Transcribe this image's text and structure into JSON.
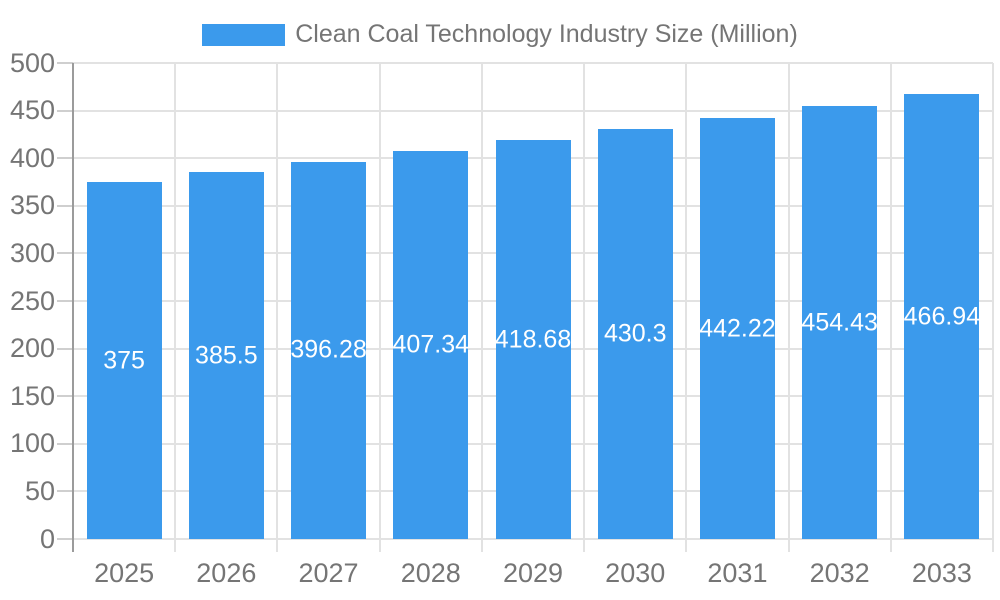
{
  "chart_data": {
    "type": "bar",
    "title": "Clean Coal Technology Industry Size (Million)",
    "legend": {
      "position": "top",
      "entries": [
        "Clean Coal Technology Industry Size (Million)"
      ]
    },
    "categories": [
      "2025",
      "2026",
      "2027",
      "2028",
      "2029",
      "2030",
      "2031",
      "2032",
      "2033"
    ],
    "series": [
      {
        "name": "Clean Coal Technology Industry Size (Million)",
        "values": [
          375,
          385.5,
          396.28,
          407.34,
          418.68,
          430.3,
          442.22,
          454.43,
          466.94
        ]
      }
    ],
    "value_labels": [
      "375",
      "385.5",
      "396.28",
      "407.34",
      "418.68",
      "430.3",
      "442.22",
      "454.43",
      "466.94"
    ],
    "xlabel": "",
    "ylabel": "",
    "ylim": [
      0,
      500
    ],
    "yticks": [
      0,
      50,
      100,
      150,
      200,
      250,
      300,
      350,
      400,
      450,
      500
    ],
    "grid": true,
    "colors": {
      "bar": "#3B9AEC",
      "value_label": "#FFFFFF",
      "axis_text": "#757575",
      "axis_line": "#9B9B9B",
      "tick": "#CFCFCF",
      "gridline": "#E2E2E2",
      "background": "#FFFFFF"
    }
  }
}
